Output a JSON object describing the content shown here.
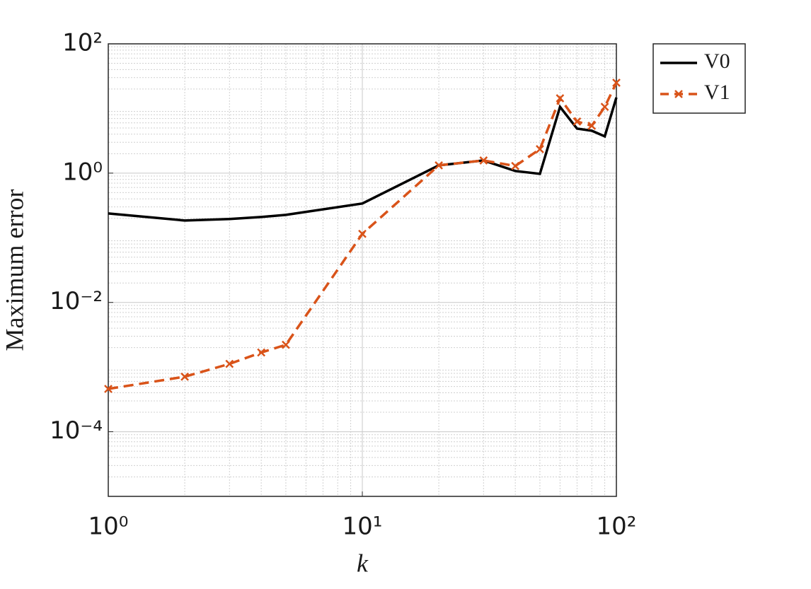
{
  "chart_data": {
    "type": "line",
    "xlabel": "k",
    "ylabel": "Maximum error",
    "x": [
      1,
      2,
      3,
      4,
      5,
      10,
      20,
      30,
      40,
      50,
      60,
      70,
      80,
      90,
      100
    ],
    "series": [
      {
        "name": "V0",
        "color": "#000000",
        "dash": false,
        "marker": false,
        "values": [
          0.238,
          0.185,
          0.195,
          0.21,
          0.226,
          0.339,
          1.32,
          1.57,
          1.08,
          0.975,
          10.6,
          4.88,
          4.53,
          3.7,
          14.8
        ]
      },
      {
        "name": "V1",
        "color": "#d95319",
        "dash": true,
        "marker": true,
        "values": [
          0.00046,
          0.00071,
          0.00112,
          0.00168,
          0.00221,
          0.115,
          1.32,
          1.57,
          1.29,
          2.35,
          14.4,
          6.28,
          5.4,
          10.6,
          25
        ]
      }
    ],
    "xscale": "log",
    "yscale": "log",
    "xlim": [
      1,
      100
    ],
    "ylim": [
      1e-05,
      100
    ],
    "xticks": [
      {
        "value": 1,
        "label": "10⁰"
      },
      {
        "value": 10,
        "label": "10¹"
      },
      {
        "value": 100,
        "label": "10²"
      }
    ],
    "yticks": [
      {
        "value": 0.0001,
        "label": "10⁻⁴"
      },
      {
        "value": 0.01,
        "label": "10⁻²"
      },
      {
        "value": 1,
        "label": "10⁰"
      },
      {
        "value": 100,
        "label": "10²"
      }
    ],
    "grid": true,
    "minor_grid": true,
    "legend": "outside-top-right"
  }
}
